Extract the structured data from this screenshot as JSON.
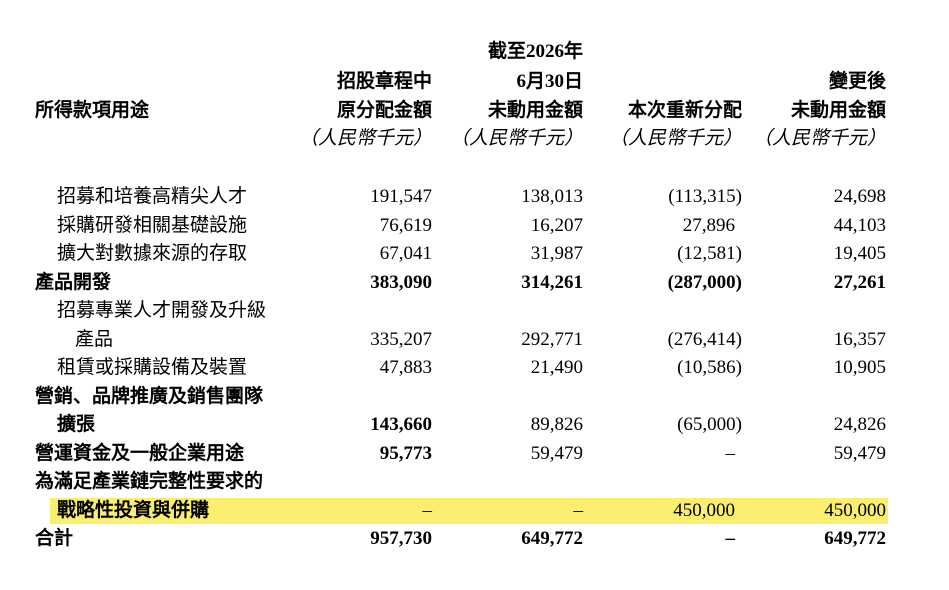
{
  "header": {
    "label": "所得款項用途",
    "columns": [
      [
        "招股章程中",
        "原分配金額",
        "（人民幣千元）"
      ],
      [
        "截至2026年",
        "6月30日",
        "未動用金額",
        "（人民幣千元）"
      ],
      [
        "本次重新分配",
        "（人民幣千元）"
      ],
      [
        "變更後",
        "未動用金額",
        "（人民幣千元）"
      ]
    ]
  },
  "rows": [
    {
      "label": [
        "招募和培養高精尖人才"
      ],
      "values": [
        "191,547",
        "138,013",
        "(113,315)",
        "24,698"
      ]
    },
    {
      "label": [
        "採購研發相關基礎設施"
      ],
      "values": [
        "76,619",
        "16,207",
        "27,896",
        "44,103"
      ]
    },
    {
      "label": [
        "擴大對數據來源的存取"
      ],
      "values": [
        "67,041",
        "31,987",
        "(12,581)",
        "19,405"
      ]
    },
    {
      "label": [
        "產品開發"
      ],
      "values": [
        "383,090",
        "314,261",
        "(287,000)",
        "27,261"
      ]
    },
    {
      "label": [
        "招募專業人才開發及升級",
        "產品"
      ],
      "values": [
        "335,207",
        "292,771",
        "(276,414)",
        "16,357"
      ]
    },
    {
      "label": [
        "租賃或採購設備及裝置"
      ],
      "values": [
        "47,883",
        "21,490",
        "(10,586)",
        "10,905"
      ]
    },
    {
      "label": [
        "營銷、品牌推廣及銷售團隊",
        "擴張"
      ],
      "values": [
        "143,660",
        "89,826",
        "(65,000)",
        "24,826"
      ]
    },
    {
      "label": [
        "營運資金及一般企業用途"
      ],
      "values": [
        "95,773",
        "59,479",
        "–",
        "59,479"
      ]
    },
    {
      "label": [
        "為滿足產業鏈完整性要求的",
        "戰略性投資與併購"
      ],
      "values": [
        "–",
        "–",
        "450,000",
        "450,000"
      ]
    },
    {
      "label": [
        "合計"
      ],
      "values": [
        "957,730",
        "649,772",
        "–",
        "649,772"
      ]
    }
  ]
}
